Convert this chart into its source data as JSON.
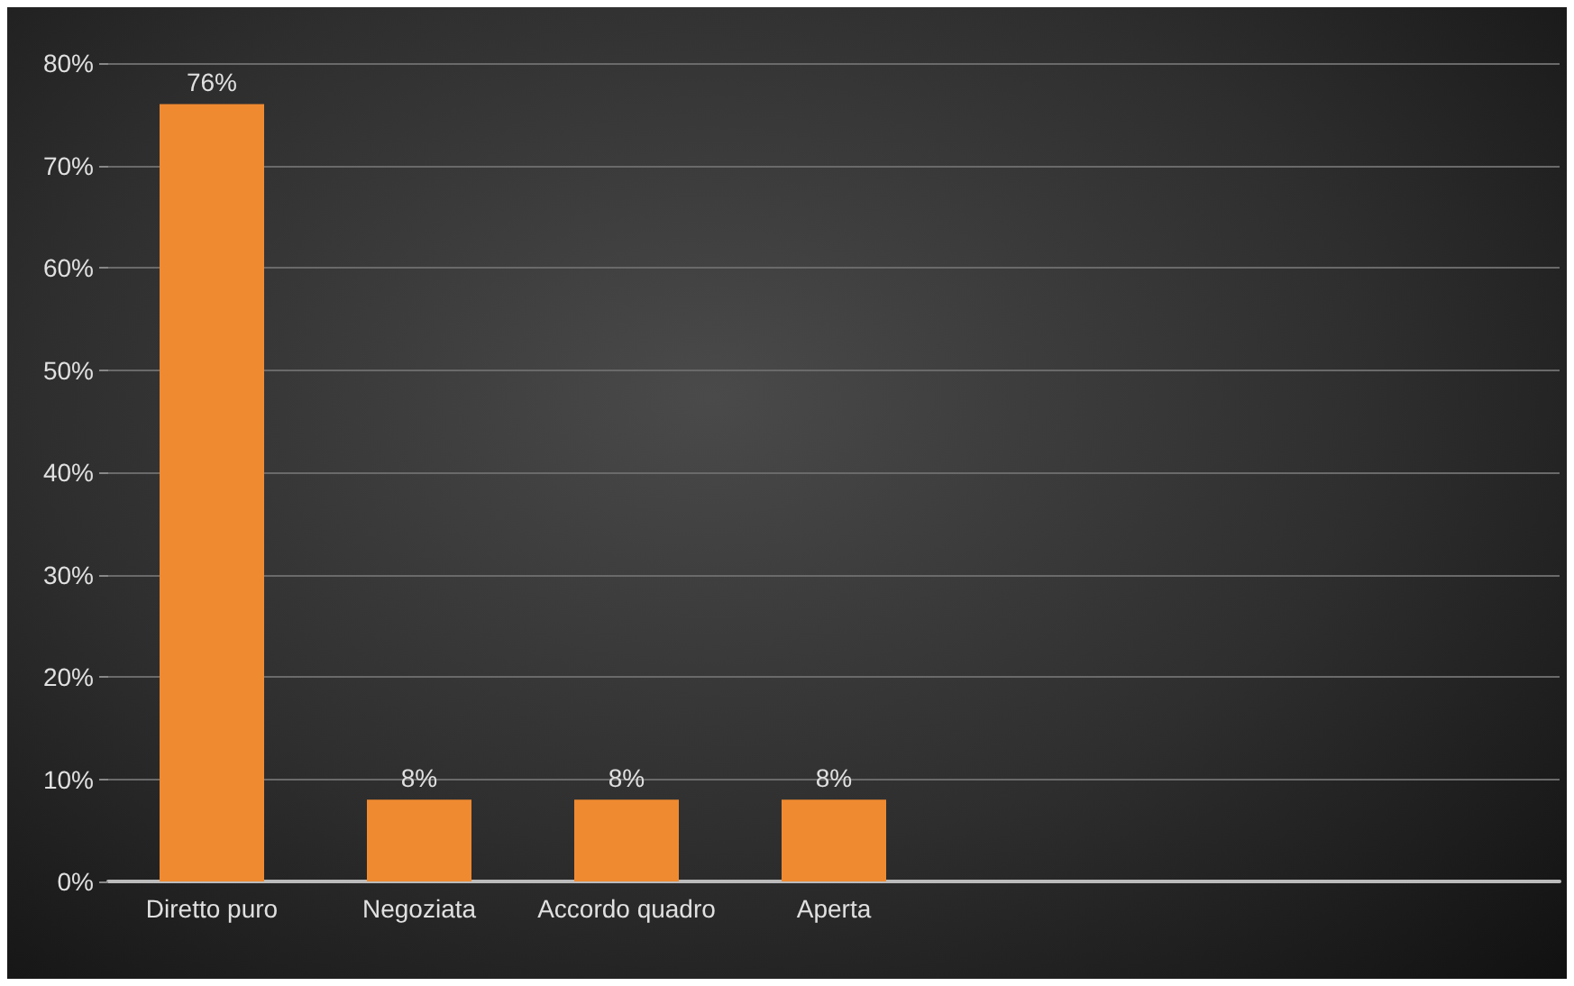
{
  "chart_data": {
    "type": "bar",
    "categories": [
      "Diretto puro",
      "Negoziata",
      "Accordo quadro",
      "Aperta",
      null,
      null,
      null
    ],
    "values": [
      76,
      8,
      8,
      8,
      null,
      null,
      null
    ],
    "value_labels": [
      "76%",
      "8%",
      "8%",
      "8%",
      null,
      null,
      null
    ],
    "color": "#f08a30",
    "ylim": [
      0,
      80
    ],
    "yticks": [
      {
        "value": 0,
        "label": "0%"
      },
      {
        "value": 10,
        "label": "10%"
      },
      {
        "value": 20,
        "label": "20%"
      },
      {
        "value": 30,
        "label": "30%"
      },
      {
        "value": 40,
        "label": "40%"
      },
      {
        "value": 50,
        "label": "50%"
      },
      {
        "value": 60,
        "label": "60%"
      },
      {
        "value": 70,
        "label": "70%"
      },
      {
        "value": 80,
        "label": "80%"
      }
    ],
    "grid": "y"
  }
}
